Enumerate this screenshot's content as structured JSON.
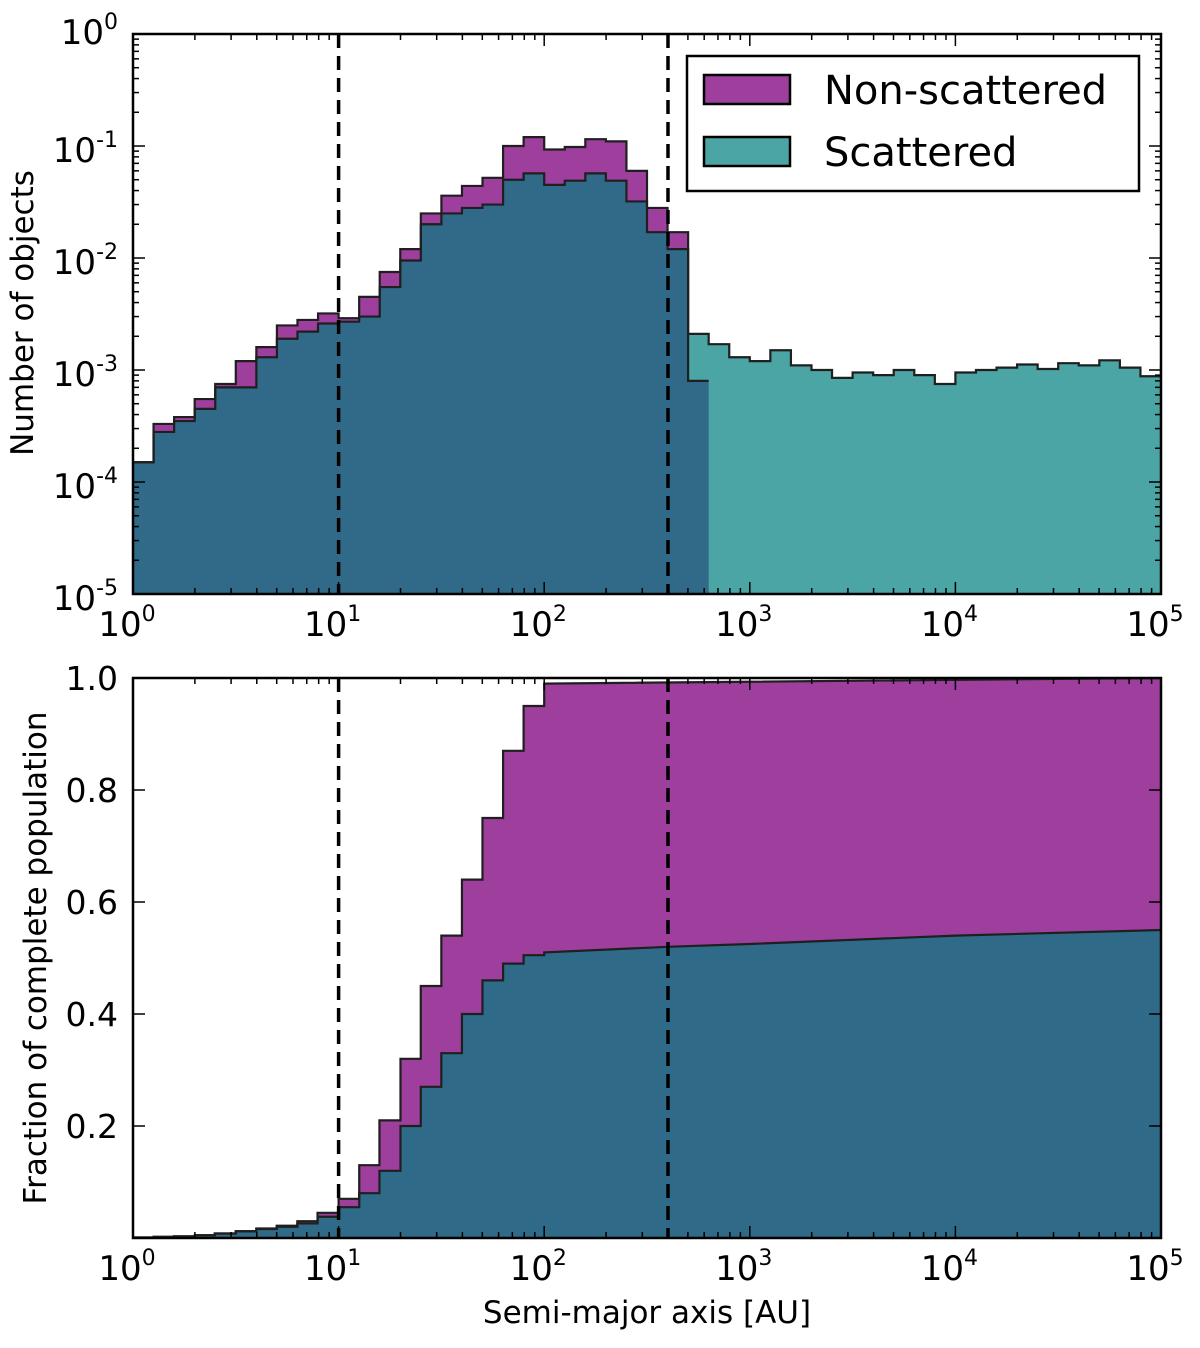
{
  "chart_data": [
    {
      "type": "area",
      "id": "top",
      "ylabel": "Number of objects",
      "xlabel": "",
      "xscale": "log",
      "yscale": "log",
      "xlim": [
        1,
        100000
      ],
      "ylim": [
        1e-05,
        1
      ],
      "x_ticks": [
        {
          "base": "10",
          "exp": "0"
        },
        {
          "base": "10",
          "exp": "1"
        },
        {
          "base": "10",
          "exp": "2"
        },
        {
          "base": "10",
          "exp": "3"
        },
        {
          "base": "10",
          "exp": "4"
        },
        {
          "base": "10",
          "exp": "5"
        }
      ],
      "y_ticks": [
        {
          "base": "10",
          "exp": "-5"
        },
        {
          "base": "10",
          "exp": "-4"
        },
        {
          "base": "10",
          "exp": "-3"
        },
        {
          "base": "10",
          "exp": "-2"
        },
        {
          "base": "10",
          "exp": "-1"
        },
        {
          "base": "10",
          "exp": "0"
        }
      ],
      "vlines": [
        10,
        400
      ],
      "legend": {
        "placement": "top-right",
        "entries": [
          {
            "label": "Non-scattered",
            "color": "#9e3f9e"
          },
          {
            "label": "Scattered",
            "color": "#4ca5a5"
          }
        ]
      },
      "bins_per_decade": 10,
      "series": [
        {
          "name": "Non-scattered",
          "color": "#9e3f9e",
          "values": [
            0.00015,
            0.00033,
            0.00038,
            0.00055,
            0.00075,
            0.0012,
            0.0016,
            0.0025,
            0.0028,
            0.0032,
            0.0029,
            0.0045,
            0.0075,
            0.012,
            0.025,
            0.036,
            0.044,
            0.052,
            0.1,
            0.12,
            0.093,
            0.098,
            0.115,
            0.11,
            0.06,
            0.028,
            0.017,
            0.0008
          ]
        },
        {
          "name": "Scattered",
          "color": "#4ca5a5",
          "values": [
            0.00015,
            0.00028,
            0.00035,
            0.00045,
            0.0007,
            0.0007,
            0.0013,
            0.0019,
            0.0022,
            0.0026,
            0.0027,
            0.003,
            0.0055,
            0.0095,
            0.02,
            0.025,
            0.028,
            0.03,
            0.05,
            0.057,
            0.045,
            0.049,
            0.057,
            0.049,
            0.032,
            0.017,
            0.012,
            0.0021,
            0.0017,
            0.0013,
            0.0012,
            0.0015,
            0.0011,
            0.001,
            0.00085,
            0.00095,
            0.0009,
            0.001,
            0.0009,
            0.00075,
            0.00095,
            0.001,
            0.00105,
            0.00112,
            0.00102,
            0.00115,
            0.0011,
            0.00122,
            0.00105,
            0.00088,
            0.0011,
            0.0012,
            0.00112,
            0.00095,
            0.00118,
            0.00085,
            0.0012,
            0.00085,
            0.00105,
            0.00095,
            0.0011,
            0.0011,
            0.0012,
            0.0016,
            0.0014,
            0.00115,
            0.00115,
            0.0009,
            0.00085,
            0.00078,
            0.0006,
            0.00055,
            0.00045,
            0.00035,
            0.00028,
            0.00028,
            0.00028,
            0.00022,
            0.0002,
            0.0002
          ]
        }
      ]
    },
    {
      "type": "area",
      "id": "bottom",
      "ylabel": "Fraction of complete population",
      "xlabel": "Semi-major axis [AU]",
      "xscale": "log",
      "yscale": "linear",
      "xlim": [
        1,
        100000
      ],
      "ylim": [
        0,
        1
      ],
      "x_ticks": [
        {
          "base": "10",
          "exp": "0"
        },
        {
          "base": "10",
          "exp": "1"
        },
        {
          "base": "10",
          "exp": "2"
        },
        {
          "base": "10",
          "exp": "3"
        },
        {
          "base": "10",
          "exp": "4"
        },
        {
          "base": "10",
          "exp": "5"
        }
      ],
      "y_ticks": [
        "0.2",
        "0.4",
        "0.6",
        "0.8",
        "1.0"
      ],
      "y_tick_values": [
        0.2,
        0.4,
        0.6,
        0.8,
        1.0
      ],
      "vlines": [
        10,
        400
      ],
      "series": [
        {
          "name": "Non-scattered",
          "color": "#9e3f9e",
          "x": [
            1,
            1.26,
            1.58,
            2,
            2.5,
            3.16,
            3.98,
            5,
            6.3,
            7.9,
            10,
            12.6,
            15.8,
            20,
            25.1,
            31.6,
            39.8,
            50.1,
            63.1,
            79.4,
            100,
            100000
          ],
          "values": [
            0.001,
            0.002,
            0.003,
            0.005,
            0.008,
            0.012,
            0.017,
            0.022,
            0.03,
            0.045,
            0.07,
            0.13,
            0.21,
            0.32,
            0.45,
            0.54,
            0.64,
            0.75,
            0.87,
            0.95,
            0.99,
            1.0
          ]
        },
        {
          "name": "Scattered",
          "color": "#2f6b89",
          "x": [
            1,
            1.26,
            1.58,
            2,
            2.5,
            3.16,
            3.98,
            5,
            6.3,
            7.9,
            10,
            12.6,
            15.8,
            20,
            25.1,
            31.6,
            39.8,
            50.1,
            63.1,
            79.4,
            100,
            400,
            1000,
            10000,
            100000
          ],
          "values": [
            0.001,
            0.002,
            0.003,
            0.005,
            0.008,
            0.012,
            0.016,
            0.02,
            0.026,
            0.038,
            0.055,
            0.08,
            0.12,
            0.2,
            0.27,
            0.33,
            0.4,
            0.46,
            0.49,
            0.505,
            0.51,
            0.52,
            0.525,
            0.54,
            0.55
          ]
        }
      ]
    }
  ]
}
